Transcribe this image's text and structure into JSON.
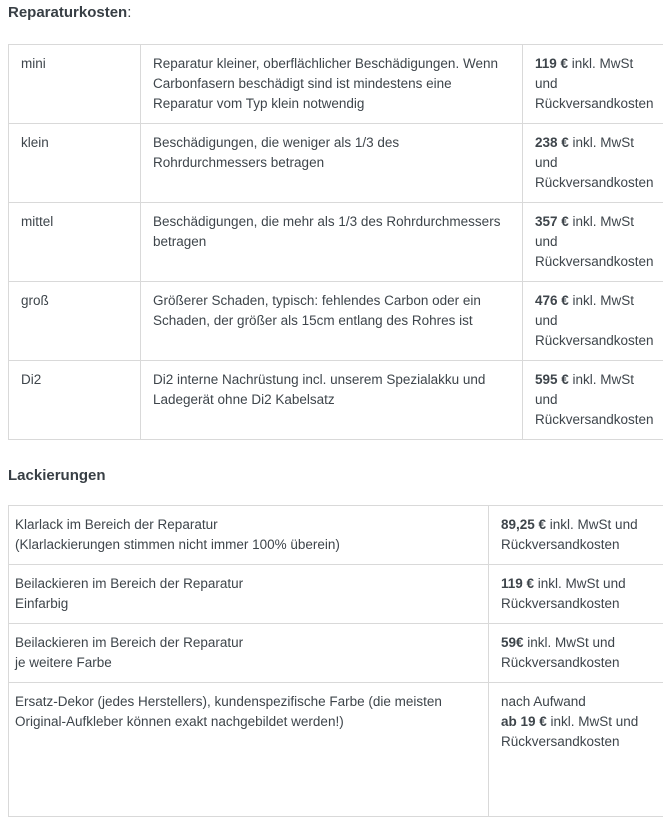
{
  "section1": {
    "title": "Reparaturkosten",
    "title_suffix": ":",
    "rows": [
      {
        "label": "mini",
        "description": "Reparatur kleiner, oberflächlicher Beschädigungen. Wenn Carbonfasern beschädigt sind ist mindestens eine Reparatur vom Typ klein notwendig",
        "price": {
          "amount": "119 €",
          "rest": " inkl. MwSt",
          "tail": "und Rückversandkosten"
        }
      },
      {
        "label": "klein",
        "description": "Beschädigungen, die weniger als 1/3 des Rohrdurchmessers betragen",
        "price": {
          "amount": "238 €",
          "rest": " inkl. MwSt",
          "tail": "und Rückversandkosten"
        }
      },
      {
        "label": "mittel",
        "description": "Beschädigungen, die mehr als 1/3 des Rohrdurchmessers betragen",
        "price": {
          "amount": "357 €",
          "rest": " inkl. MwSt",
          "tail": "und Rückversandkosten"
        }
      },
      {
        "label": "groß",
        "description": "Größerer Schaden, typisch: fehlendes Carbon oder ein Schaden, der größer als 15cm entlang des Rohres ist",
        "price": {
          "amount": "476 €",
          "rest": " inkl. MwSt",
          "tail": "und Rückversandkosten"
        }
      },
      {
        "label": "Di2",
        "description": "Di2 interne Nachrüstung incl. unserem Spezialakku und Ladegerät ohne Di2 Kabelsatz",
        "price": {
          "amount": "595 €",
          "rest": " inkl. MwSt",
          "tail": "und Rückversandkosten"
        }
      }
    ]
  },
  "section2": {
    "title": "Lackierungen",
    "rows": [
      {
        "description": "Klarlack im Bereich der Reparatur\n(Klarlackierungen stimmen nicht immer 100% überein)",
        "price": {
          "amount": "89,25 €",
          "rest": " inkl. MwSt und",
          "tail": "Rückversandkosten"
        }
      },
      {
        "description": "Beilackieren im Bereich der Reparatur\nEinfarbig",
        "price": {
          "amount": "119 €",
          "rest": " inkl. MwSt und",
          "tail": "Rückversandkosten"
        }
      },
      {
        "description": "Beilackieren im Bereich der Reparatur\nje weitere Farbe",
        "price": {
          "amount": "59€",
          "rest": " inkl. MwSt und",
          "tail": "Rückversandkosten"
        }
      },
      {
        "description": "Ersatz-Dekor (jedes Herstellers), kundenspezifische Farbe (die meisten Original-Aufkleber können exakt nachgebildet werden!)",
        "price": {
          "prefix": "nach Aufwand",
          "amount": "ab 19 €",
          "rest": " inkl. MwSt und",
          "tail": "Rückversandkosten"
        }
      }
    ]
  },
  "colors": {
    "text": "#3e454b",
    "border": "#d9d9d9",
    "background": "#ffffff"
  }
}
